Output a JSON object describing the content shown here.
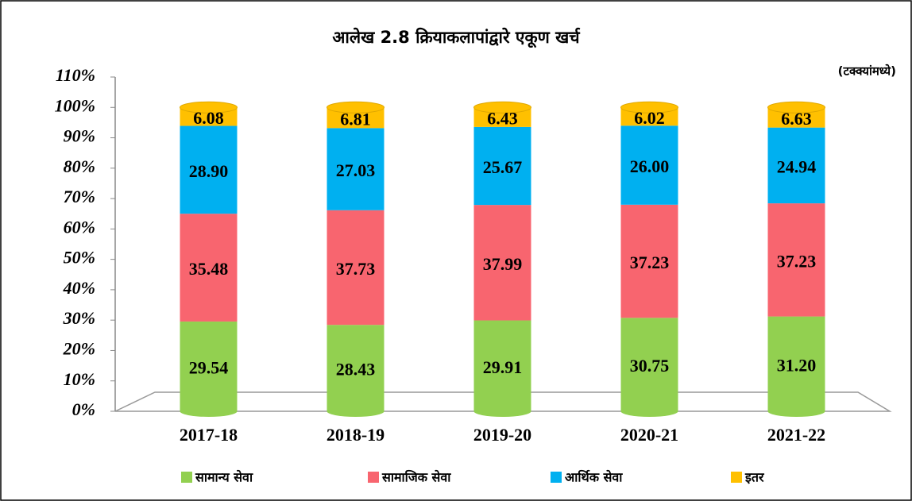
{
  "chart_data": {
    "type": "stacked_bar",
    "title": "आलेख 2.8 क्रियाकलापांद्वारे एकूण खर्च",
    "subtitle": "(टक्क्यांमध्ये)",
    "categories": [
      "2017-18",
      "2018-19",
      "2019-20",
      "2020-21",
      "2021-22"
    ],
    "series": [
      {
        "name": "सामान्य सेवा",
        "color": "#92d050",
        "values": [
          29.54,
          28.43,
          29.91,
          30.75,
          31.2
        ],
        "value_labels": [
          "29.54",
          "28.43",
          "29.91",
          "30.75",
          "31.20"
        ]
      },
      {
        "name": "सामाजिक सेवा",
        "color": "#f8656f",
        "values": [
          35.48,
          37.73,
          37.99,
          37.23,
          37.23
        ],
        "value_labels": [
          "35.48",
          "37.73",
          "37.99",
          "37.23",
          "37.23"
        ]
      },
      {
        "name": "आर्थिक सेवा",
        "color": "#00b0f0",
        "values": [
          28.9,
          27.03,
          25.67,
          26.0,
          24.94
        ],
        "value_labels": [
          "28.90",
          "27.03",
          "25.67",
          "26.00",
          "24.94"
        ]
      },
      {
        "name": "इतर",
        "color": "#ffc000",
        "values": [
          6.08,
          6.81,
          6.43,
          6.02,
          6.63
        ],
        "value_labels": [
          "6.08",
          "6.81",
          "6.43",
          "6.02",
          "6.63"
        ]
      }
    ],
    "ylim": [
      0,
      110
    ],
    "yticks": [
      {
        "value": 0,
        "label": "0%"
      },
      {
        "value": 10,
        "label": "10%"
      },
      {
        "value": 20,
        "label": "20%"
      },
      {
        "value": 30,
        "label": "30%"
      },
      {
        "value": 40,
        "label": "40%"
      },
      {
        "value": 50,
        "label": "50%"
      },
      {
        "value": 60,
        "label": "60%"
      },
      {
        "value": 70,
        "label": "70%"
      },
      {
        "value": 80,
        "label": "80%"
      },
      {
        "value": 90,
        "label": "90%"
      },
      {
        "value": 100,
        "label": "100%"
      },
      {
        "value": 110,
        "label": "110%"
      }
    ],
    "legend": "bottom"
  }
}
